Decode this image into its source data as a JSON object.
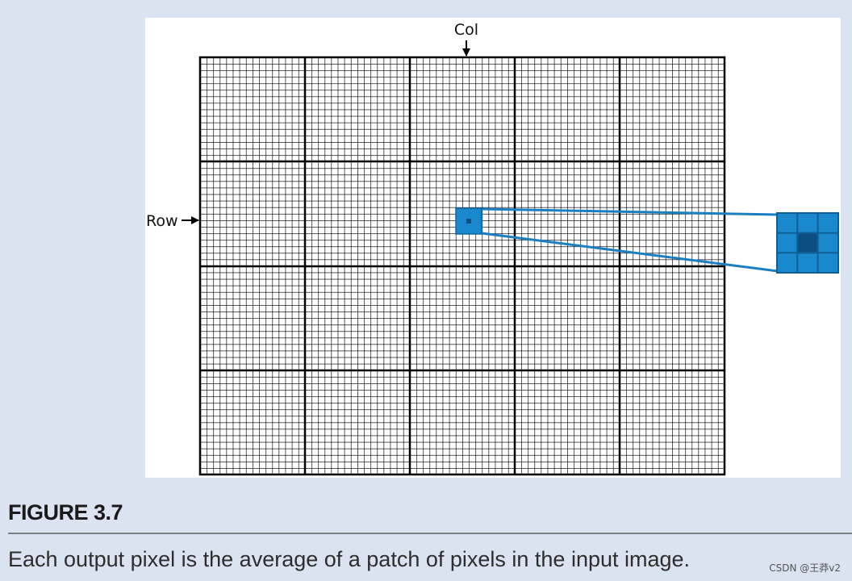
{
  "figure": {
    "col_label": "Col",
    "row_label": "Row",
    "number": "FIGURE 3.7",
    "caption": "Each output pixel is the average of a patch of pixels in the input image.",
    "watermark": "CSDN @王莽v2"
  }
}
